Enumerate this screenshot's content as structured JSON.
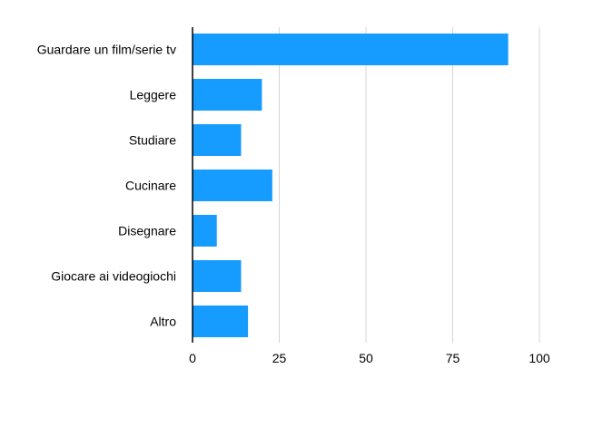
{
  "chart_data": {
    "type": "bar",
    "orientation": "horizontal",
    "categories": [
      "Guardare un film/serie tv",
      "Leggere",
      "Studiare",
      "Cucinare",
      "Disegnare",
      "Giocare ai videogiochi",
      "Altro"
    ],
    "values": [
      91,
      20,
      14,
      23,
      7,
      14,
      16
    ],
    "xlim": [
      0,
      100
    ],
    "xticks": [
      0,
      25,
      50,
      75,
      100
    ],
    "xtick_labels": [
      "0",
      "25",
      "50",
      "75",
      "100"
    ],
    "title": "",
    "xlabel": "",
    "ylabel": "",
    "grid": true,
    "legend": "none",
    "bar_color": "#169cff"
  }
}
